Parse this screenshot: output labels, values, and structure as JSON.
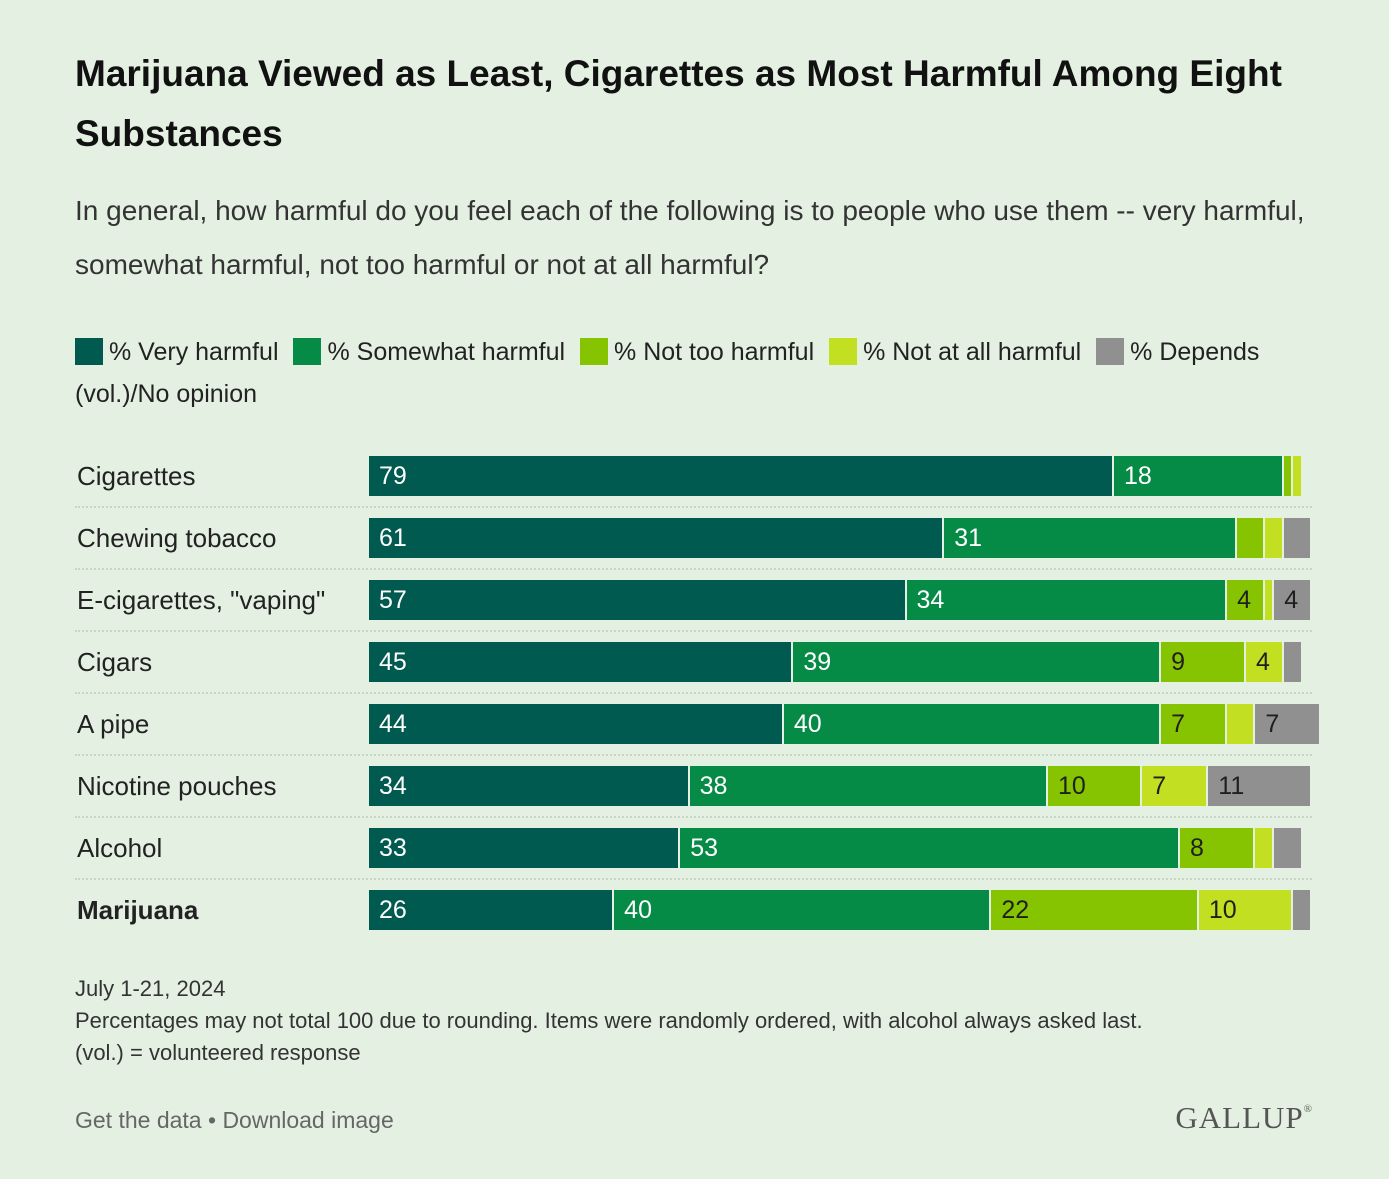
{
  "title": "Marijuana Viewed as Least, Cigarettes as Most Harmful Among Eight Substances",
  "subtitle": "In general, how harmful do you feel each of the following is to people who use them -- very harmful, somewhat harmful, not too harmful or not at all harmful?",
  "colors": {
    "background": "#e4f1e2",
    "very_harmful": "#005a4f",
    "somewhat_harmful": "#068b47",
    "not_too_harmful": "#86c300",
    "not_at_all_harmful": "#c3df21",
    "depends_no_opinion": "#8f908f",
    "label_light": "#ffffff",
    "label_dark": "#1f1f1f"
  },
  "chart_data": {
    "type": "bar",
    "orientation": "horizontal",
    "stacked": true,
    "title": "Marijuana Viewed as Least, Cigarettes as Most Harmful Among Eight Substances",
    "subtitle": "In general, how harmful do you feel each of the following is to people who use them -- very harmful, somewhat harmful, not too harmful or not at all harmful?",
    "legend_position": "top",
    "grid": false,
    "xlim": [
      0,
      100
    ],
    "categories": [
      "Cigarettes",
      "Chewing tobacco",
      "E-cigarettes, \"vaping\"",
      "Cigars",
      "A pipe",
      "Nicotine pouches",
      "Alcohol",
      "Marijuana"
    ],
    "highlight_category": "Marijuana",
    "series": [
      {
        "name": "% Very harmful",
        "color": "#005a4f",
        "label_color": "#ffffff",
        "values": [
          79,
          61,
          57,
          45,
          44,
          34,
          33,
          26
        ]
      },
      {
        "name": "% Somewhat harmful",
        "color": "#068b47",
        "label_color": "#ffffff",
        "values": [
          18,
          31,
          34,
          39,
          40,
          38,
          53,
          40
        ]
      },
      {
        "name": "% Not too harmful",
        "color": "#86c300",
        "label_color": "#1f1f1f",
        "values": [
          1,
          3,
          4,
          9,
          7,
          10,
          8,
          22
        ]
      },
      {
        "name": "% Not at all harmful",
        "color": "#c3df21",
        "label_color": "#1f1f1f",
        "values": [
          1,
          2,
          1,
          4,
          3,
          7,
          2,
          10
        ]
      },
      {
        "name": "% Depends (vol.)/No opinion",
        "color": "#8f908f",
        "label_color": "#1f1f1f",
        "values": [
          0,
          3,
          4,
          2,
          7,
          11,
          3,
          2
        ]
      }
    ],
    "data_labels": [
      [
        "79",
        "18",
        "",
        "",
        ""
      ],
      [
        "61",
        "31",
        "",
        "",
        ""
      ],
      [
        "57",
        "34",
        "4",
        "",
        "4"
      ],
      [
        "45",
        "39",
        "9",
        "4",
        ""
      ],
      [
        "44",
        "40",
        "7",
        "",
        "7"
      ],
      [
        "34",
        "38",
        "10",
        "7",
        "11"
      ],
      [
        "33",
        "53",
        "8",
        "",
        ""
      ],
      [
        "26",
        "40",
        "22",
        "10",
        ""
      ]
    ]
  },
  "footnote": {
    "date": "July 1-21, 2024",
    "note": "Percentages may not total 100 due to rounding. Items were randomly ordered, with alcohol always asked last.",
    "vol_note": "(vol.) = volunteered response"
  },
  "links": {
    "get_data": "Get the data",
    "separator": "•",
    "download": "Download image"
  },
  "logo": {
    "text": "GALLUP",
    "mark": "®"
  }
}
